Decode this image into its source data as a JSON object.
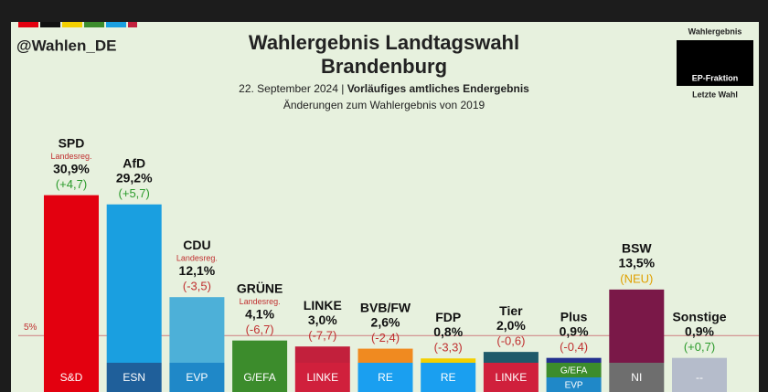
{
  "chart_data": {
    "type": "bar",
    "handle": "@Wahlen_DE",
    "title": [
      "Wahlergebnis Landtagswahl",
      "Brandenburg"
    ],
    "subtitle": {
      "date": "22. September 2024 |",
      "status": "Vorläufiges amtliches Endergebnis"
    },
    "note": "Änderungen zum Wahlergebnis von 2019",
    "legend": [
      "Wahlergebnis",
      "EP-Fraktion",
      "Letzte Wahl"
    ],
    "threshold": 5,
    "threshold_label": "5%",
    "government_label": "Landesreg.",
    "ylim": [
      0,
      31
    ],
    "categories": [
      "SPD",
      "AfD",
      "CDU",
      "GRÜNE",
      "LINKE",
      "BVB/FW",
      "FDP",
      "Tier",
      "Plus",
      "BSW",
      "Sonstige"
    ],
    "values": [
      30.9,
      29.2,
      12.1,
      4.1,
      3.0,
      2.6,
      0.8,
      2.0,
      0.9,
      13.5,
      0.9
    ],
    "value_labels": [
      "30,9%",
      "29,2%",
      "12,1%",
      "4,1%",
      "3,0%",
      "2,6%",
      "0,8%",
      "2,0%",
      "0,9%",
      "13,5%",
      "0,9%"
    ],
    "changes": [
      4.7,
      5.7,
      -3.5,
      -6.7,
      -7.7,
      -2.4,
      -3.3,
      -0.6,
      -0.4,
      null,
      0.7
    ],
    "change_labels": [
      "(+4,7)",
      "(+5,7)",
      "(-3,5)",
      "(-6,7)",
      "(-7,7)",
      "(-2,4)",
      "(-3,3)",
      "(-0,6)",
      "(-0,4)",
      "(NEU)",
      "(+0,7)"
    ],
    "government": [
      true,
      false,
      true,
      true,
      false,
      false,
      false,
      false,
      false,
      false,
      false
    ],
    "colors": [
      "#e3000f",
      "#1a9fe0",
      "#4db0d8",
      "#3c8c2c",
      "#c2203c",
      "#f08a20",
      "#f3cf00",
      "#1f5a6a",
      "#23318f",
      "#7a1848",
      "#b5bccb"
    ],
    "fractions": [
      [
        {
          "label": "S&D",
          "color": "#e3000f"
        }
      ],
      [
        {
          "label": "ESN",
          "color": "#1f5f9a"
        }
      ],
      [
        {
          "label": "EVP",
          "color": "#1f88c8"
        }
      ],
      [
        {
          "label": "G/EFA",
          "color": "#3c8c2c"
        }
      ],
      [
        {
          "label": "LINKE",
          "color": "#d0203c"
        }
      ],
      [
        {
          "label": "RE",
          "color": "#1a9ff0"
        }
      ],
      [
        {
          "label": "RE",
          "color": "#1a9ff0"
        }
      ],
      [
        {
          "label": "LINKE",
          "color": "#d0203c"
        }
      ],
      [
        {
          "label": "G/EFA",
          "color": "#3c8c2c"
        },
        {
          "label": "EVP",
          "color": "#1f88c8"
        }
      ],
      [
        {
          "label": "NI",
          "color": "#6e6e6e"
        }
      ],
      [
        {
          "label": "--",
          "color": "#b5bccb"
        }
      ]
    ]
  }
}
